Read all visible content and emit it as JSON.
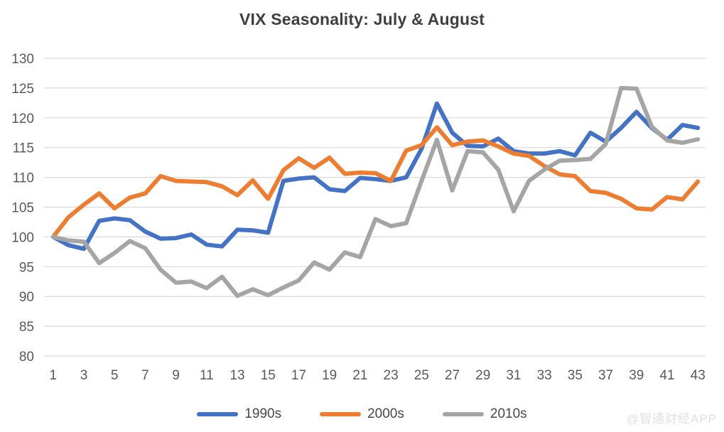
{
  "title": "VIX Seasonality: July & August",
  "watermark": "@智通财经APP",
  "colors": {
    "series_1990s": "#4472C4",
    "series_2000s": "#ED7D31",
    "series_2010s": "#A5A5A5",
    "gridline": "#D9D9D9",
    "axis_label": "#595959",
    "title": "#3F3F3F",
    "background": "#FFFFFF"
  },
  "legend": {
    "position": "bottom",
    "items": [
      {
        "label": "1990s",
        "color": "#4472C4"
      },
      {
        "label": "2000s",
        "color": "#ED7D31"
      },
      {
        "label": "2010s",
        "color": "#A5A5A5"
      }
    ]
  },
  "chart_data": {
    "type": "line",
    "title": "VIX Seasonality: July & August",
    "xlabel": "",
    "ylabel": "",
    "ylim": [
      80,
      130
    ],
    "y_ticks": [
      80,
      85,
      90,
      95,
      100,
      105,
      110,
      115,
      120,
      125,
      130
    ],
    "x": [
      1,
      2,
      3,
      4,
      5,
      6,
      7,
      8,
      9,
      10,
      11,
      12,
      13,
      14,
      15,
      16,
      17,
      18,
      19,
      20,
      21,
      22,
      23,
      24,
      25,
      26,
      27,
      28,
      29,
      30,
      31,
      32,
      33,
      34,
      35,
      36,
      37,
      38,
      39,
      40,
      41,
      42,
      43
    ],
    "x_tick_labels": [
      1,
      3,
      5,
      7,
      9,
      11,
      13,
      15,
      17,
      19,
      21,
      23,
      25,
      27,
      29,
      31,
      33,
      35,
      37,
      39,
      41,
      43
    ],
    "grid": "horizontal",
    "legend_position": "bottom",
    "series": [
      {
        "name": "1990s",
        "color": "#4472C4",
        "values": [
          100,
          98.6,
          98.0,
          102.7,
          103.1,
          102.8,
          100.9,
          99.7,
          99.8,
          100.4,
          98.7,
          98.4,
          101.2,
          101.1,
          100.7,
          109.4,
          109.8,
          110.0,
          108.0,
          107.7,
          109.9,
          109.7,
          109.4,
          110.0,
          114.8,
          122.4,
          117.5,
          115.3,
          115.2,
          116.5,
          114.4,
          114.0,
          114.0,
          114.4,
          113.7,
          117.5,
          116.0,
          118.3,
          121.0,
          118.3,
          116.3,
          118.8,
          118.3
        ]
      },
      {
        "name": "2000s",
        "color": "#ED7D31",
        "values": [
          100,
          103.3,
          105.4,
          107.3,
          104.8,
          106.6,
          107.3,
          110.2,
          109.4,
          109.3,
          109.2,
          108.5,
          107.0,
          109.5,
          106.4,
          111.2,
          113.2,
          111.6,
          113.3,
          110.6,
          110.8,
          110.7,
          109.4,
          114.5,
          115.4,
          118.4,
          115.4,
          116.0,
          116.2,
          115.2,
          114.0,
          113.6,
          111.9,
          110.5,
          110.2,
          107.7,
          107.4,
          106.4,
          104.8,
          104.6,
          106.7,
          106.3,
          109.3
        ]
      },
      {
        "name": "2010s",
        "color": "#A5A5A5",
        "values": [
          100,
          99.4,
          99.2,
          95.6,
          97.3,
          99.3,
          98.1,
          94.5,
          92.3,
          92.5,
          91.4,
          93.3,
          90.1,
          91.2,
          90.2,
          91.5,
          92.7,
          95.7,
          94.5,
          97.4,
          96.6,
          103.0,
          101.8,
          102.3,
          109.4,
          116.3,
          107.8,
          114.4,
          114.2,
          111.3,
          104.3,
          109.4,
          111.3,
          112.8,
          112.9,
          113.1,
          115.6,
          125.0,
          124.9,
          118.5,
          116.2,
          115.8,
          116.4
        ]
      }
    ]
  }
}
